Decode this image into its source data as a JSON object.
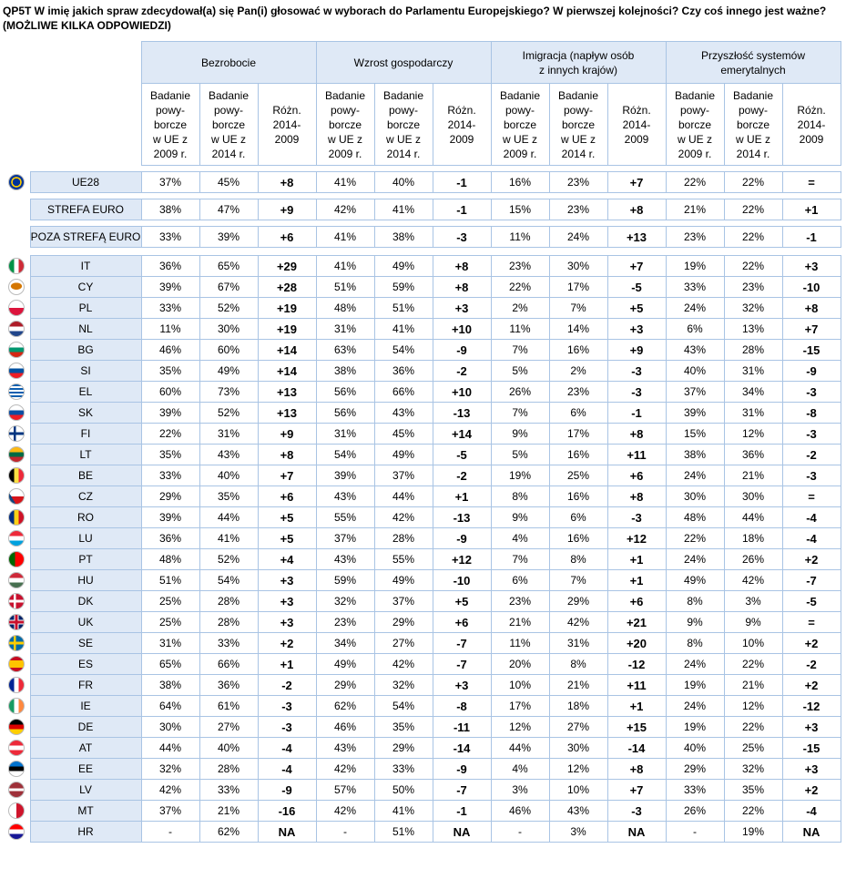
{
  "header": {
    "title": "QP5T W imię jakich spraw zdecydował(a) się Pan(i) głosować w wyborach do Parlamentu Europejskiego? W pierwszej kolejności? Czy coś innego jest ważne?",
    "note": "(MOŻLIWE KILKA ODPOWIEDZI)"
  },
  "table": {
    "groups": [
      "Bezrobocie",
      "Wzrost gospodarczy",
      "Imigracja (napływ osób\nz innych krajów)",
      "Przyszłość systemów\nemerytalnych"
    ],
    "subheaders": [
      "Badanie\npowy-\nborcze\nw UE z\n2009 r.",
      "Badanie\npowy-\nborcze\nw UE z\n2014 r.",
      "Różn.\n2014-\n2009"
    ],
    "summary_rows": [
      {
        "label": "UE28",
        "cells": [
          "37%",
          "45%",
          "+8",
          "41%",
          "40%",
          "-1",
          "16%",
          "23%",
          "+7",
          "22%",
          "22%",
          "="
        ]
      },
      {
        "label": "STREFA EURO",
        "cells": [
          "38%",
          "47%",
          "+9",
          "42%",
          "41%",
          "-1",
          "15%",
          "23%",
          "+8",
          "21%",
          "22%",
          "+1"
        ]
      },
      {
        "label": "POZA STREFĄ EURO",
        "cells": [
          "33%",
          "39%",
          "+6",
          "41%",
          "38%",
          "-3",
          "11%",
          "24%",
          "+13",
          "23%",
          "22%",
          "-1"
        ]
      }
    ],
    "country_rows": [
      {
        "label": "IT",
        "cells": [
          "36%",
          "65%",
          "+29",
          "41%",
          "49%",
          "+8",
          "23%",
          "30%",
          "+7",
          "19%",
          "22%",
          "+3"
        ]
      },
      {
        "label": "CY",
        "cells": [
          "39%",
          "67%",
          "+28",
          "51%",
          "59%",
          "+8",
          "22%",
          "17%",
          "-5",
          "33%",
          "23%",
          "-10"
        ]
      },
      {
        "label": "PL",
        "cells": [
          "33%",
          "52%",
          "+19",
          "48%",
          "51%",
          "+3",
          "2%",
          "7%",
          "+5",
          "24%",
          "32%",
          "+8"
        ]
      },
      {
        "label": "NL",
        "cells": [
          "11%",
          "30%",
          "+19",
          "31%",
          "41%",
          "+10",
          "11%",
          "14%",
          "+3",
          "6%",
          "13%",
          "+7"
        ]
      },
      {
        "label": "BG",
        "cells": [
          "46%",
          "60%",
          "+14",
          "63%",
          "54%",
          "-9",
          "7%",
          "16%",
          "+9",
          "43%",
          "28%",
          "-15"
        ]
      },
      {
        "label": "SI",
        "cells": [
          "35%",
          "49%",
          "+14",
          "38%",
          "36%",
          "-2",
          "5%",
          "2%",
          "-3",
          "40%",
          "31%",
          "-9"
        ]
      },
      {
        "label": "EL",
        "cells": [
          "60%",
          "73%",
          "+13",
          "56%",
          "66%",
          "+10",
          "26%",
          "23%",
          "-3",
          "37%",
          "34%",
          "-3"
        ]
      },
      {
        "label": "SK",
        "cells": [
          "39%",
          "52%",
          "+13",
          "56%",
          "43%",
          "-13",
          "7%",
          "6%",
          "-1",
          "39%",
          "31%",
          "-8"
        ]
      },
      {
        "label": "FI",
        "cells": [
          "22%",
          "31%",
          "+9",
          "31%",
          "45%",
          "+14",
          "9%",
          "17%",
          "+8",
          "15%",
          "12%",
          "-3"
        ]
      },
      {
        "label": "LT",
        "cells": [
          "35%",
          "43%",
          "+8",
          "54%",
          "49%",
          "-5",
          "5%",
          "16%",
          "+11",
          "38%",
          "36%",
          "-2"
        ]
      },
      {
        "label": "BE",
        "cells": [
          "33%",
          "40%",
          "+7",
          "39%",
          "37%",
          "-2",
          "19%",
          "25%",
          "+6",
          "24%",
          "21%",
          "-3"
        ]
      },
      {
        "label": "CZ",
        "cells": [
          "29%",
          "35%",
          "+6",
          "43%",
          "44%",
          "+1",
          "8%",
          "16%",
          "+8",
          "30%",
          "30%",
          "="
        ]
      },
      {
        "label": "RO",
        "cells": [
          "39%",
          "44%",
          "+5",
          "55%",
          "42%",
          "-13",
          "9%",
          "6%",
          "-3",
          "48%",
          "44%",
          "-4"
        ]
      },
      {
        "label": "LU",
        "cells": [
          "36%",
          "41%",
          "+5",
          "37%",
          "28%",
          "-9",
          "4%",
          "16%",
          "+12",
          "22%",
          "18%",
          "-4"
        ]
      },
      {
        "label": "PT",
        "cells": [
          "48%",
          "52%",
          "+4",
          "43%",
          "55%",
          "+12",
          "7%",
          "8%",
          "+1",
          "24%",
          "26%",
          "+2"
        ]
      },
      {
        "label": "HU",
        "cells": [
          "51%",
          "54%",
          "+3",
          "59%",
          "49%",
          "-10",
          "6%",
          "7%",
          "+1",
          "49%",
          "42%",
          "-7"
        ]
      },
      {
        "label": "DK",
        "cells": [
          "25%",
          "28%",
          "+3",
          "32%",
          "37%",
          "+5",
          "23%",
          "29%",
          "+6",
          "8%",
          "3%",
          "-5"
        ]
      },
      {
        "label": "UK",
        "cells": [
          "25%",
          "28%",
          "+3",
          "23%",
          "29%",
          "+6",
          "21%",
          "42%",
          "+21",
          "9%",
          "9%",
          "="
        ]
      },
      {
        "label": "SE",
        "cells": [
          "31%",
          "33%",
          "+2",
          "34%",
          "27%",
          "-7",
          "11%",
          "31%",
          "+20",
          "8%",
          "10%",
          "+2"
        ]
      },
      {
        "label": "ES",
        "cells": [
          "65%",
          "66%",
          "+1",
          "49%",
          "42%",
          "-7",
          "20%",
          "8%",
          "-12",
          "24%",
          "22%",
          "-2"
        ]
      },
      {
        "label": "FR",
        "cells": [
          "38%",
          "36%",
          "-2",
          "29%",
          "32%",
          "+3",
          "10%",
          "21%",
          "+11",
          "19%",
          "21%",
          "+2"
        ]
      },
      {
        "label": "IE",
        "cells": [
          "64%",
          "61%",
          "-3",
          "62%",
          "54%",
          "-8",
          "17%",
          "18%",
          "+1",
          "24%",
          "12%",
          "-12"
        ]
      },
      {
        "label": "DE",
        "cells": [
          "30%",
          "27%",
          "-3",
          "46%",
          "35%",
          "-11",
          "12%",
          "27%",
          "+15",
          "19%",
          "22%",
          "+3"
        ]
      },
      {
        "label": "AT",
        "cells": [
          "44%",
          "40%",
          "-4",
          "43%",
          "29%",
          "-14",
          "44%",
          "30%",
          "-14",
          "40%",
          "25%",
          "-15"
        ]
      },
      {
        "label": "EE",
        "cells": [
          "32%",
          "28%",
          "-4",
          "42%",
          "33%",
          "-9",
          "4%",
          "12%",
          "+8",
          "29%",
          "32%",
          "+3"
        ]
      },
      {
        "label": "LV",
        "cells": [
          "42%",
          "33%",
          "-9",
          "57%",
          "50%",
          "-7",
          "3%",
          "10%",
          "+7",
          "33%",
          "35%",
          "+2"
        ]
      },
      {
        "label": "MT",
        "cells": [
          "37%",
          "21%",
          "-16",
          "42%",
          "41%",
          "-1",
          "46%",
          "43%",
          "-3",
          "26%",
          "22%",
          "-4"
        ]
      },
      {
        "label": "HR",
        "cells": [
          "-",
          "62%",
          "NA",
          "-",
          "51%",
          "NA",
          "-",
          "3%",
          "NA",
          "-",
          "19%",
          "NA"
        ]
      }
    ]
  }
}
